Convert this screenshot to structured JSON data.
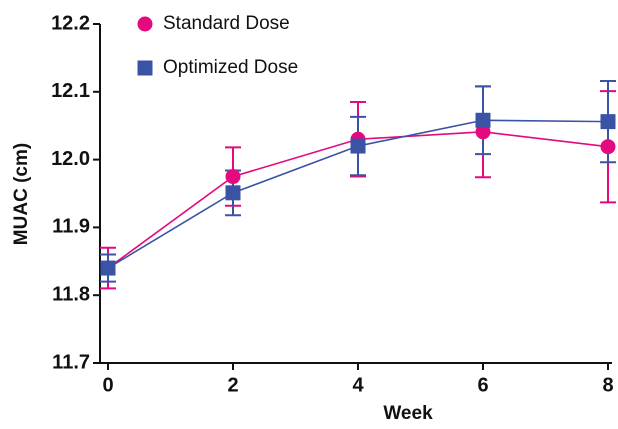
{
  "chart_data": {
    "type": "line",
    "x_label": "Week",
    "y_label": "MUAC (cm)",
    "x": [
      0,
      2,
      4,
      6,
      8
    ],
    "series": [
      {
        "name": "Standard Dose",
        "color": "#e5097f",
        "marker": "circle",
        "values": [
          11.84,
          11.975,
          12.03,
          12.041,
          12.019
        ],
        "errors": [
          0.03,
          0.043,
          0.055,
          0.067,
          0.082
        ]
      },
      {
        "name": "Optimized Dose",
        "color": "#3a53a4",
        "marker": "square",
        "values": [
          11.84,
          11.951,
          12.02,
          12.058,
          12.056
        ],
        "errors": [
          0.02,
          0.033,
          0.043,
          0.05,
          0.06
        ]
      }
    ],
    "xlim": [
      0,
      8
    ],
    "xticks": [
      0,
      2,
      4,
      6,
      8
    ],
    "ylim": [
      11.7,
      12.2
    ],
    "yticks": [
      11.7,
      11.8,
      11.9,
      {
        "value": 12,
        "label": "12.0"
      },
      12.1,
      12.2
    ],
    "legend": "upper left",
    "grid": false
  }
}
